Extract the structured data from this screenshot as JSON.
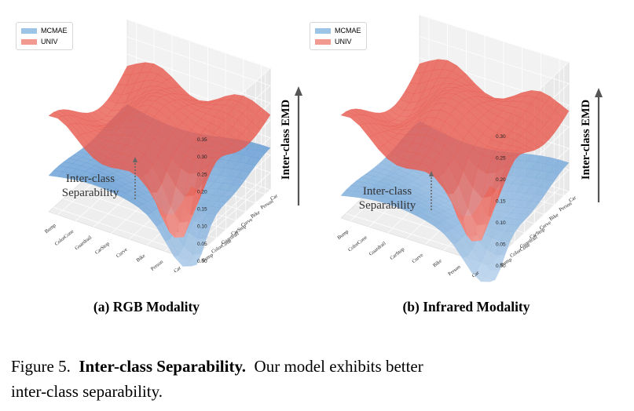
{
  "figure": {
    "label": "Figure 5.",
    "title": "Inter-class Separability.",
    "text_line1": "Our model exhibits better",
    "text_line2": "inter-class separability."
  },
  "colors": {
    "mcmae": "#7fb0dc",
    "univ": "#f08a7e"
  },
  "chart_data": [
    {
      "type": "surface3d",
      "subtitle": "(a) RGB Modality",
      "zlabel": "Inter-class EMD",
      "annotation": "Inter-class Separability",
      "annotation_line1": "Inter-class",
      "annotation_line2": "Separability",
      "legend": [
        "MCMAE",
        "UNIV"
      ],
      "x_categories": [
        "Bump",
        "ColorCone",
        "Guardrail",
        "CarStop",
        "Curve",
        "Bike",
        "Person",
        "Car"
      ],
      "y_categories": [
        "Car",
        "Person",
        "Bike",
        "Curve",
        "CarStop",
        "Guardrail",
        "ColorCone",
        "Bump"
      ],
      "zticks": [
        "0.00",
        "0.05",
        "0.10",
        "0.15",
        "0.20",
        "0.25",
        "0.30",
        "0.35"
      ],
      "zlim": [
        0,
        0.35
      ],
      "series": [
        {
          "name": "MCMAE",
          "approx_mean": 0.05
        },
        {
          "name": "UNIV",
          "approx_mean": 0.2
        }
      ]
    },
    {
      "type": "surface3d",
      "subtitle": "(b) Infrared Modality",
      "zlabel": "Inter-class EMD",
      "annotation": "Inter-class Separability",
      "annotation_line1": "Inter-class",
      "annotation_line2": "Separability",
      "legend": [
        "MCMAE",
        "UNIV"
      ],
      "x_categories": [
        "Bump",
        "ColorCone",
        "Guardrail",
        "CarStop",
        "Curve",
        "Bike",
        "Person",
        "Car"
      ],
      "y_categories": [
        "Car",
        "Person",
        "Bike",
        "Curve",
        "CarStop",
        "Guardrail",
        "ColorCone",
        "Bump"
      ],
      "zticks": [
        "0.00",
        "0.05",
        "0.10",
        "0.15",
        "0.20",
        "0.25",
        "0.30"
      ],
      "zlim": [
        0,
        0.3
      ],
      "series": [
        {
          "name": "MCMAE",
          "approx_mean": 0.03
        },
        {
          "name": "UNIV",
          "approx_mean": 0.18
        }
      ]
    }
  ]
}
